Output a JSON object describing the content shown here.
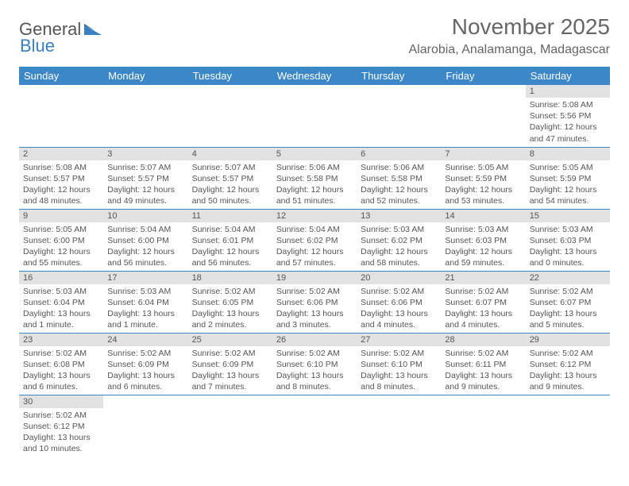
{
  "logo": {
    "part1": "General",
    "part2": "Blue"
  },
  "title": "November 2025",
  "location": "Alarobia, Analamanga, Madagascar",
  "colors": {
    "header_bg": "#3b87c8",
    "header_text": "#ffffff",
    "dayhead_bg": "#e2e2e2",
    "border": "#3b87c8",
    "text": "#555555"
  },
  "day_names": [
    "Sunday",
    "Monday",
    "Tuesday",
    "Wednesday",
    "Thursday",
    "Friday",
    "Saturday"
  ],
  "weeks": [
    [
      null,
      null,
      null,
      null,
      null,
      null,
      {
        "n": "1",
        "sr": "Sunrise: 5:08 AM",
        "ss": "Sunset: 5:56 PM",
        "dl": "Daylight: 12 hours and 47 minutes."
      }
    ],
    [
      {
        "n": "2",
        "sr": "Sunrise: 5:08 AM",
        "ss": "Sunset: 5:57 PM",
        "dl": "Daylight: 12 hours and 48 minutes."
      },
      {
        "n": "3",
        "sr": "Sunrise: 5:07 AM",
        "ss": "Sunset: 5:57 PM",
        "dl": "Daylight: 12 hours and 49 minutes."
      },
      {
        "n": "4",
        "sr": "Sunrise: 5:07 AM",
        "ss": "Sunset: 5:57 PM",
        "dl": "Daylight: 12 hours and 50 minutes."
      },
      {
        "n": "5",
        "sr": "Sunrise: 5:06 AM",
        "ss": "Sunset: 5:58 PM",
        "dl": "Daylight: 12 hours and 51 minutes."
      },
      {
        "n": "6",
        "sr": "Sunrise: 5:06 AM",
        "ss": "Sunset: 5:58 PM",
        "dl": "Daylight: 12 hours and 52 minutes."
      },
      {
        "n": "7",
        "sr": "Sunrise: 5:05 AM",
        "ss": "Sunset: 5:59 PM",
        "dl": "Daylight: 12 hours and 53 minutes."
      },
      {
        "n": "8",
        "sr": "Sunrise: 5:05 AM",
        "ss": "Sunset: 5:59 PM",
        "dl": "Daylight: 12 hours and 54 minutes."
      }
    ],
    [
      {
        "n": "9",
        "sr": "Sunrise: 5:05 AM",
        "ss": "Sunset: 6:00 PM",
        "dl": "Daylight: 12 hours and 55 minutes."
      },
      {
        "n": "10",
        "sr": "Sunrise: 5:04 AM",
        "ss": "Sunset: 6:00 PM",
        "dl": "Daylight: 12 hours and 56 minutes."
      },
      {
        "n": "11",
        "sr": "Sunrise: 5:04 AM",
        "ss": "Sunset: 6:01 PM",
        "dl": "Daylight: 12 hours and 56 minutes."
      },
      {
        "n": "12",
        "sr": "Sunrise: 5:04 AM",
        "ss": "Sunset: 6:02 PM",
        "dl": "Daylight: 12 hours and 57 minutes."
      },
      {
        "n": "13",
        "sr": "Sunrise: 5:03 AM",
        "ss": "Sunset: 6:02 PM",
        "dl": "Daylight: 12 hours and 58 minutes."
      },
      {
        "n": "14",
        "sr": "Sunrise: 5:03 AM",
        "ss": "Sunset: 6:03 PM",
        "dl": "Daylight: 12 hours and 59 minutes."
      },
      {
        "n": "15",
        "sr": "Sunrise: 5:03 AM",
        "ss": "Sunset: 6:03 PM",
        "dl": "Daylight: 13 hours and 0 minutes."
      }
    ],
    [
      {
        "n": "16",
        "sr": "Sunrise: 5:03 AM",
        "ss": "Sunset: 6:04 PM",
        "dl": "Daylight: 13 hours and 1 minute."
      },
      {
        "n": "17",
        "sr": "Sunrise: 5:03 AM",
        "ss": "Sunset: 6:04 PM",
        "dl": "Daylight: 13 hours and 1 minute."
      },
      {
        "n": "18",
        "sr": "Sunrise: 5:02 AM",
        "ss": "Sunset: 6:05 PM",
        "dl": "Daylight: 13 hours and 2 minutes."
      },
      {
        "n": "19",
        "sr": "Sunrise: 5:02 AM",
        "ss": "Sunset: 6:06 PM",
        "dl": "Daylight: 13 hours and 3 minutes."
      },
      {
        "n": "20",
        "sr": "Sunrise: 5:02 AM",
        "ss": "Sunset: 6:06 PM",
        "dl": "Daylight: 13 hours and 4 minutes."
      },
      {
        "n": "21",
        "sr": "Sunrise: 5:02 AM",
        "ss": "Sunset: 6:07 PM",
        "dl": "Daylight: 13 hours and 4 minutes."
      },
      {
        "n": "22",
        "sr": "Sunrise: 5:02 AM",
        "ss": "Sunset: 6:07 PM",
        "dl": "Daylight: 13 hours and 5 minutes."
      }
    ],
    [
      {
        "n": "23",
        "sr": "Sunrise: 5:02 AM",
        "ss": "Sunset: 6:08 PM",
        "dl": "Daylight: 13 hours and 6 minutes."
      },
      {
        "n": "24",
        "sr": "Sunrise: 5:02 AM",
        "ss": "Sunset: 6:09 PM",
        "dl": "Daylight: 13 hours and 6 minutes."
      },
      {
        "n": "25",
        "sr": "Sunrise: 5:02 AM",
        "ss": "Sunset: 6:09 PM",
        "dl": "Daylight: 13 hours and 7 minutes."
      },
      {
        "n": "26",
        "sr": "Sunrise: 5:02 AM",
        "ss": "Sunset: 6:10 PM",
        "dl": "Daylight: 13 hours and 8 minutes."
      },
      {
        "n": "27",
        "sr": "Sunrise: 5:02 AM",
        "ss": "Sunset: 6:10 PM",
        "dl": "Daylight: 13 hours and 8 minutes."
      },
      {
        "n": "28",
        "sr": "Sunrise: 5:02 AM",
        "ss": "Sunset: 6:11 PM",
        "dl": "Daylight: 13 hours and 9 minutes."
      },
      {
        "n": "29",
        "sr": "Sunrise: 5:02 AM",
        "ss": "Sunset: 6:12 PM",
        "dl": "Daylight: 13 hours and 9 minutes."
      }
    ],
    [
      {
        "n": "30",
        "sr": "Sunrise: 5:02 AM",
        "ss": "Sunset: 6:12 PM",
        "dl": "Daylight: 13 hours and 10 minutes."
      },
      null,
      null,
      null,
      null,
      null,
      null
    ]
  ]
}
